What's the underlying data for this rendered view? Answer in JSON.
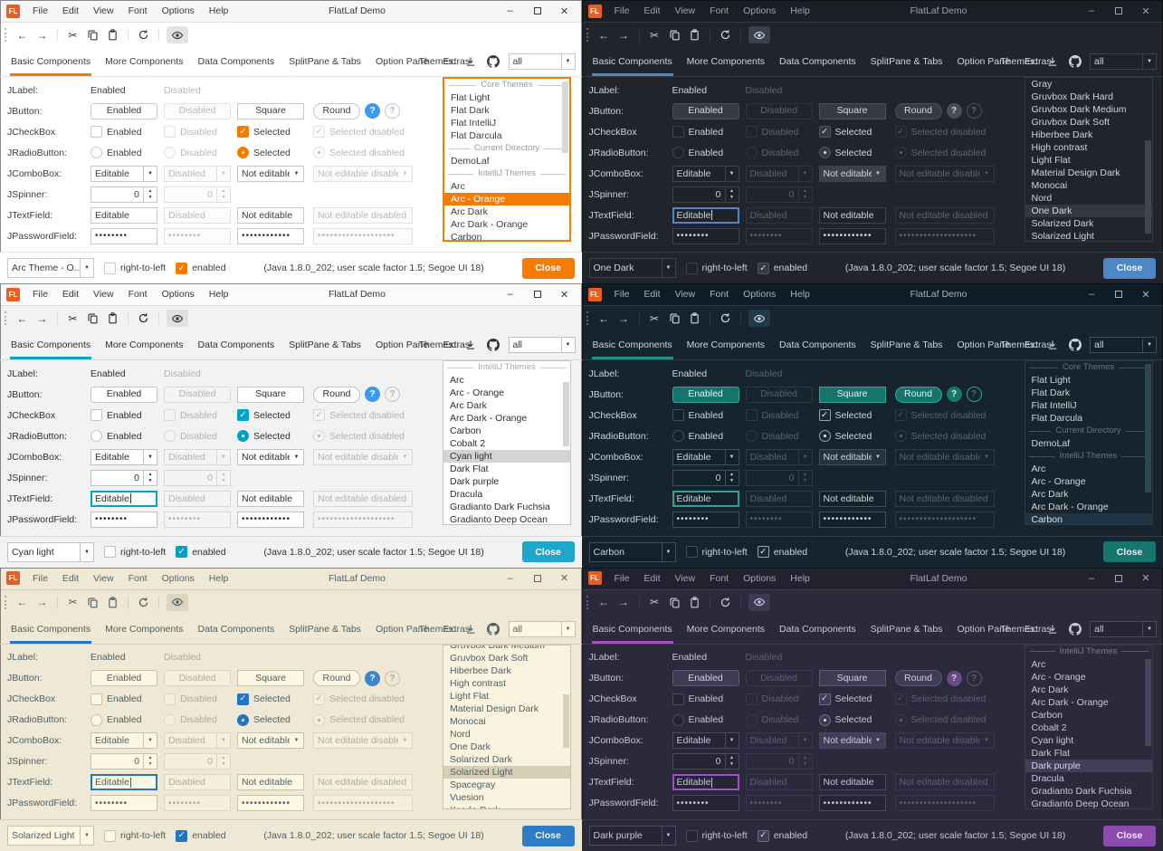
{
  "shared": {
    "window_title": "FlatLaf Demo",
    "logo_text": "FL",
    "menus": [
      "File",
      "Edit",
      "View",
      "Font",
      "Options",
      "Help"
    ],
    "icons": {
      "back": "←",
      "forward": "→",
      "cut": "✂",
      "minimize": "–",
      "close": "✕",
      "combo_arrow": "▼",
      "spin_up": "▲",
      "spin_down": "▼",
      "check": "✓",
      "help": "?"
    },
    "tabs": [
      "Basic Components",
      "More Components",
      "Data Components",
      "SplitPane & Tabs",
      "Option Pane",
      "Extras"
    ],
    "themes_label": "Themes:",
    "themes_filter": "all",
    "rows": {
      "jlabel": {
        "label": "JLabel:",
        "enabled": "Enabled",
        "disabled": "Disabled"
      },
      "jbutton": {
        "label": "JButton:",
        "enabled": "Enabled",
        "disabled": "Disabled",
        "square": "Square",
        "round": "Round"
      },
      "jcheckbox": {
        "label": "JCheckBox",
        "enabled": "Enabled",
        "disabled": "Disabled",
        "selected": "Selected",
        "selected_disabled": "Selected disabled"
      },
      "jradiobutton": {
        "label": "JRadioButton:",
        "enabled": "Enabled",
        "disabled": "Disabled",
        "selected": "Selected",
        "selected_disabled": "Selected disabled"
      },
      "jcombobox": {
        "label": "JComboBox:",
        "editable": "Editable",
        "disabled": "Disabled",
        "not_editable": "Not editable",
        "not_editable_disabled": "Not editable disabled"
      },
      "jspinner": {
        "label": "JSpinner:",
        "value": "0"
      },
      "jtextfield": {
        "label": "JTextField:",
        "editable": "Editable",
        "disabled": "Disabled",
        "not_editable": "Not editable",
        "not_editable_disabled": "Not editable disabled"
      },
      "jpasswordfield": {
        "label": "JPasswordField:",
        "pw1": "••••••••",
        "pw2": "••••••••",
        "pw3": "••••••••••••",
        "pw4": "•••••••••••••••••••"
      }
    },
    "bottom": {
      "rtl": "right-to-left",
      "enabled": "enabled",
      "status": "(Java 1.8.0_202;  user scale factor 1.5; Segoe UI 18)",
      "close": "Close"
    }
  },
  "panels": [
    {
      "theme": "Arc - Orange",
      "combo_value": "Arc Theme - O...",
      "textfield_focused": false,
      "caret": false,
      "list_focused": true,
      "scroll": {
        "top_pct": 1,
        "height_pct": 45
      },
      "themes_list": [
        {
          "t": "sep",
          "label": "Core Themes"
        },
        {
          "t": "item",
          "label": "Flat Light"
        },
        {
          "t": "item",
          "label": "Flat Dark"
        },
        {
          "t": "item",
          "label": "Flat IntelliJ"
        },
        {
          "t": "item",
          "label": "Flat Darcula"
        },
        {
          "t": "sep",
          "label": "Current Directory"
        },
        {
          "t": "item",
          "label": "DemoLaf"
        },
        {
          "t": "sep",
          "label": "IntelliJ Themes"
        },
        {
          "t": "item",
          "label": "Arc"
        },
        {
          "t": "item",
          "label": "Arc - Orange",
          "selected": true
        },
        {
          "t": "item",
          "label": "Arc Dark"
        },
        {
          "t": "item",
          "label": "Arc Dark - Orange"
        },
        {
          "t": "item",
          "label": "Carbon"
        }
      ],
      "colors": {
        "titlebar-bg": "#f6f6f6",
        "titlebar-fg": "#3a3a3a",
        "content-bg": "#ffffff",
        "divider": "#e4e4e4",
        "text": "#3d3d3d",
        "muted": "#b9b9b9",
        "accent": "#f57c00",
        "btn-bg": "#ffffff",
        "btn-fg": "#3d3d3d",
        "btn-border": "#c8c8c8",
        "field-bg": "#ffffff",
        "field-fg": "#3d3d3d",
        "field-border": "#c8c8c8",
        "dis-border": "#e0e0e0",
        "dis-field-bg": "#fcfcfc",
        "combo-solid-bg": "#ffffff",
        "sel-bg": "#f57c00",
        "sel-fg": "#ffffff",
        "sep-fg": "#9b9b9b",
        "close-bg": "#f57c00",
        "close-fg": "#ffffff",
        "check-bg": "#f57c00",
        "check-border": "#f57c00",
        "check-fg": "#ffffff",
        "toggle-bg": "#e3e3e3",
        "list-bg": "#ffffff",
        "list-border": "#f57c00",
        "scroll-thumb": "#d9d9d9",
        "help-bg": "#3d99f0",
        "help-fg": "#ffffff",
        "focus": "#f57c00"
      }
    },
    {
      "theme": "One Dark",
      "combo_value": "One Dark",
      "textfield_focused": true,
      "caret": true,
      "list_focused": false,
      "scroll": {
        "top_pct": 38,
        "height_pct": 58
      },
      "themes_list": [
        {
          "t": "item",
          "label": "Gray"
        },
        {
          "t": "item",
          "label": "Gruvbox Dark Hard"
        },
        {
          "t": "item",
          "label": "Gruvbox Dark Medium"
        },
        {
          "t": "item",
          "label": "Gruvbox Dark Soft"
        },
        {
          "t": "item",
          "label": "Hiberbee Dark"
        },
        {
          "t": "item",
          "label": "High contrast"
        },
        {
          "t": "item",
          "label": "Light Flat"
        },
        {
          "t": "item",
          "label": "Material Design Dark"
        },
        {
          "t": "item",
          "label": "Monocai"
        },
        {
          "t": "item",
          "label": "Nord"
        },
        {
          "t": "item",
          "label": "One Dark",
          "selected": true
        },
        {
          "t": "item",
          "label": "Solarized Dark"
        },
        {
          "t": "item",
          "label": "Solarized Light"
        }
      ],
      "colors": {
        "titlebar-bg": "#1b1f25",
        "titlebar-fg": "#9aa2b0",
        "content-bg": "#21252b",
        "divider": "#343a44",
        "text": "#ced4df",
        "muted": "#5d6470",
        "accent": "#4d87c7",
        "btn-bg": "#353b45",
        "btn-fg": "#d4dae4",
        "btn-border": "#4a515d",
        "field-bg": "#1f2329",
        "field-fg": "#ced4df",
        "field-border": "#3d444f",
        "dis-border": "#30363f",
        "dis-field-bg": "#21252b",
        "combo-solid-bg": "#3a414c",
        "sel-bg": "#323842",
        "sel-fg": "#d4dae4",
        "sep-fg": "#6e7683",
        "close-bg": "#4d87c7",
        "close-fg": "#f2f6fc",
        "check-bg": "#353b45",
        "check-border": "#4d5460",
        "check-fg": "#dde2ea",
        "toggle-bg": "#3a414c",
        "list-bg": "#21252b",
        "list-border": "#343a44",
        "scroll-thumb": "#3f4650",
        "help-bg": "#474e5a",
        "help-fg": "#ccd2dc",
        "focus": "#4d87c7"
      }
    },
    {
      "theme": "Cyan light",
      "combo_value": "Cyan light",
      "textfield_focused": true,
      "caret": true,
      "list_focused": false,
      "scroll": {
        "top_pct": 12,
        "height_pct": 40
      },
      "themes_list": [
        {
          "t": "sep",
          "label": "IntelliJ Themes"
        },
        {
          "t": "item",
          "label": "Arc"
        },
        {
          "t": "item",
          "label": "Arc - Orange"
        },
        {
          "t": "item",
          "label": "Arc Dark"
        },
        {
          "t": "item",
          "label": "Arc Dark - Orange"
        },
        {
          "t": "item",
          "label": "Carbon"
        },
        {
          "t": "item",
          "label": "Cobalt 2"
        },
        {
          "t": "item",
          "label": "Cyan light",
          "selected": true
        },
        {
          "t": "item",
          "label": "Dark Flat"
        },
        {
          "t": "item",
          "label": "Dark purple"
        },
        {
          "t": "item",
          "label": "Dracula"
        },
        {
          "t": "item",
          "label": "Gradianto Dark Fuchsia"
        },
        {
          "t": "item",
          "label": "Gradianto Deep Ocean"
        }
      ],
      "colors": {
        "titlebar-bg": "#fafafa",
        "titlebar-fg": "#383838",
        "content-bg": "#f2f2f2",
        "divider": "#dadada",
        "text": "#303030",
        "muted": "#b2b2b2",
        "accent": "#00a3c6",
        "btn-bg": "#ffffff",
        "btn-fg": "#303030",
        "btn-border": "#c2c2c2",
        "field-bg": "#ffffff",
        "field-fg": "#303030",
        "field-border": "#c2c2c2",
        "dis-border": "#d8d8d8",
        "dis-field-bg": "#f4f4f4",
        "combo-solid-bg": "#ffffff",
        "sel-bg": "#d4d4d4",
        "sel-fg": "#303030",
        "sep-fg": "#a8a8a8",
        "close-bg": "#1fa7c9",
        "close-fg": "#ffffff",
        "check-bg": "#00a3c6",
        "check-border": "#00a3c6",
        "check-fg": "#ffffff",
        "toggle-bg": "#e0e0e0",
        "list-bg": "#ffffff",
        "list-border": "#c6c6c6",
        "scroll-thumb": "#d4d4d4",
        "help-bg": "#3d99f0",
        "help-fg": "#ffffff",
        "focus": "#00a3c6"
      }
    },
    {
      "theme": "Carbon",
      "combo_value": "Carbon",
      "textfield_focused": true,
      "caret": false,
      "list_focused": false,
      "scroll": {
        "top_pct": 1,
        "height_pct": 80
      },
      "themes_list": [
        {
          "t": "sep",
          "label": "Core Themes"
        },
        {
          "t": "item",
          "label": "Flat Light"
        },
        {
          "t": "item",
          "label": "Flat Dark"
        },
        {
          "t": "item",
          "label": "Flat IntelliJ"
        },
        {
          "t": "item",
          "label": "Flat Darcula"
        },
        {
          "t": "sep",
          "label": "Current Directory"
        },
        {
          "t": "item",
          "label": "DemoLaf"
        },
        {
          "t": "sep",
          "label": "IntelliJ Themes"
        },
        {
          "t": "item",
          "label": "Arc"
        },
        {
          "t": "item",
          "label": "Arc - Orange"
        },
        {
          "t": "item",
          "label": "Arc Dark"
        },
        {
          "t": "item",
          "label": "Arc Dark - Orange"
        },
        {
          "t": "item",
          "label": "Carbon",
          "selected": true
        }
      ],
      "colors": {
        "titlebar-bg": "#101c25",
        "titlebar-fg": "#a7b4bc",
        "content-bg": "#17242e",
        "divider": "#2b3c48",
        "text": "#ccd6dc",
        "muted": "#54656f",
        "accent": "#1b9286",
        "btn-bg": "#15756d",
        "btn-fg": "#e6f2f0",
        "btn-border": "#2aa89a",
        "field-bg": "#14202a",
        "field-fg": "#ccd6dc",
        "field-border": "#3c4f5c",
        "dis-border": "#2b3c48",
        "dis-field-bg": "#17242e",
        "combo-solid-bg": "#24343f",
        "sel-bg": "#1f3546",
        "sel-fg": "#d9e3e9",
        "sep-fg": "#5e7789",
        "close-bg": "#17766e",
        "close-fg": "#e8f4f2",
        "check-bg": "#1b2a35",
        "check-border": "#93a5af",
        "check-fg": "#eaf0f4",
        "toggle-bg": "#1f3a49",
        "list-bg": "#17242e",
        "list-border": "#2b3c48",
        "scroll-thumb": "#2f4755",
        "help-bg": "#17766e",
        "help-fg": "#dff0ed",
        "focus": "#26a69a"
      }
    },
    {
      "theme": "Solarized Light",
      "combo_value": "Solarized Light",
      "textfield_focused": true,
      "caret": true,
      "list_focused": false,
      "scroll": {
        "top_pct": 30,
        "height_pct": 33
      },
      "themes_list": [
        {
          "t": "item",
          "label": "Gruvbox Dark Medium",
          "clipped": true
        },
        {
          "t": "item",
          "label": "Gruvbox Dark Soft"
        },
        {
          "t": "item",
          "label": "Hiberbee Dark"
        },
        {
          "t": "item",
          "label": "High contrast"
        },
        {
          "t": "item",
          "label": "Light Flat"
        },
        {
          "t": "item",
          "label": "Material Design Dark"
        },
        {
          "t": "item",
          "label": "Monocai"
        },
        {
          "t": "item",
          "label": "Nord"
        },
        {
          "t": "item",
          "label": "One Dark"
        },
        {
          "t": "item",
          "label": "Solarized Dark"
        },
        {
          "t": "item",
          "label": "Solarized Light",
          "selected": true
        },
        {
          "t": "item",
          "label": "Spacegray"
        },
        {
          "t": "item",
          "label": "Vuesion"
        },
        {
          "t": "item",
          "label": "Xcode-Dark"
        }
      ],
      "colors": {
        "titlebar-bg": "#eee8d5",
        "titlebar-fg": "#52676f",
        "content-bg": "#eee8d5",
        "divider": "#d8d1ba",
        "text": "#4c6168",
        "muted": "#b2ab93",
        "accent": "#2075c7",
        "btn-bg": "#fdf6e3",
        "btn-fg": "#4c6168",
        "btn-border": "#c9c2a9",
        "field-bg": "#fdf6e3",
        "field-fg": "#4c6168",
        "field-border": "#c9c2a9",
        "dis-border": "#ded7c0",
        "dis-field-bg": "#f6efdc",
        "combo-solid-bg": "#fdf6e3",
        "sel-bg": "#d6cfb6",
        "sel-fg": "#4c6168",
        "sep-fg": "#a49d85",
        "close-bg": "#2e7bc6",
        "close-fg": "#fdf6e3",
        "check-bg": "#2075c7",
        "check-border": "#2075c7",
        "check-fg": "#fdf6e3",
        "toggle-bg": "#ddd6bf",
        "list-bg": "#faf3df",
        "list-border": "#c9c2a9",
        "scroll-thumb": "#d8d1ba",
        "help-bg": "#3b86cc",
        "help-fg": "#ffffff",
        "focus": "#2075c7"
      }
    },
    {
      "theme": "Dark purple",
      "combo_value": "Dark purple",
      "textfield_focused": true,
      "caret": true,
      "list_focused": false,
      "scroll": {
        "top_pct": 8,
        "height_pct": 54
      },
      "themes_list": [
        {
          "t": "sep",
          "label": "IntelliJ Themes"
        },
        {
          "t": "item",
          "label": "Arc"
        },
        {
          "t": "item",
          "label": "Arc - Orange"
        },
        {
          "t": "item",
          "label": "Arc Dark"
        },
        {
          "t": "item",
          "label": "Arc Dark - Orange"
        },
        {
          "t": "item",
          "label": "Carbon"
        },
        {
          "t": "item",
          "label": "Cobalt 2"
        },
        {
          "t": "item",
          "label": "Cyan light"
        },
        {
          "t": "item",
          "label": "Dark Flat"
        },
        {
          "t": "item",
          "label": "Dark purple",
          "selected": true
        },
        {
          "t": "item",
          "label": "Dracula"
        },
        {
          "t": "item",
          "label": "Gradianto Dark Fuchsia"
        },
        {
          "t": "item",
          "label": "Gradianto Deep Ocean"
        }
      ],
      "colors": {
        "titlebar-bg": "#22212e",
        "titlebar-fg": "#a7a2bf",
        "content-bg": "#2b2a3b",
        "divider": "#3d3a4f",
        "text": "#c9c5dc",
        "muted": "#605c7a",
        "accent": "#a94fc4",
        "btn-bg": "#3e3b55",
        "btn-fg": "#d6d1e6",
        "btn-border": "#5c5779",
        "field-bg": "#262535",
        "field-fg": "#c9c5dc",
        "field-border": "#4b4765",
        "dis-border": "#3a3750",
        "dis-field-bg": "#2b2a3b",
        "combo-solid-bg": "#413e5a",
        "sel-bg": "#413e5a",
        "sel-fg": "#d8d4e8",
        "sep-fg": "#7d7898",
        "close-bg": "#8a4bad",
        "close-fg": "#f1eaf8",
        "check-bg": "#3e3b55",
        "check-border": "#6e6992",
        "check-fg": "#e4def1",
        "toggle-bg": "#3d3a54",
        "list-bg": "#2b2a3b",
        "list-border": "#3d3a4f",
        "scroll-thumb": "#474360",
        "help-bg": "#654b83",
        "help-fg": "#d8cce6",
        "focus": "#a64dc9"
      }
    }
  ]
}
